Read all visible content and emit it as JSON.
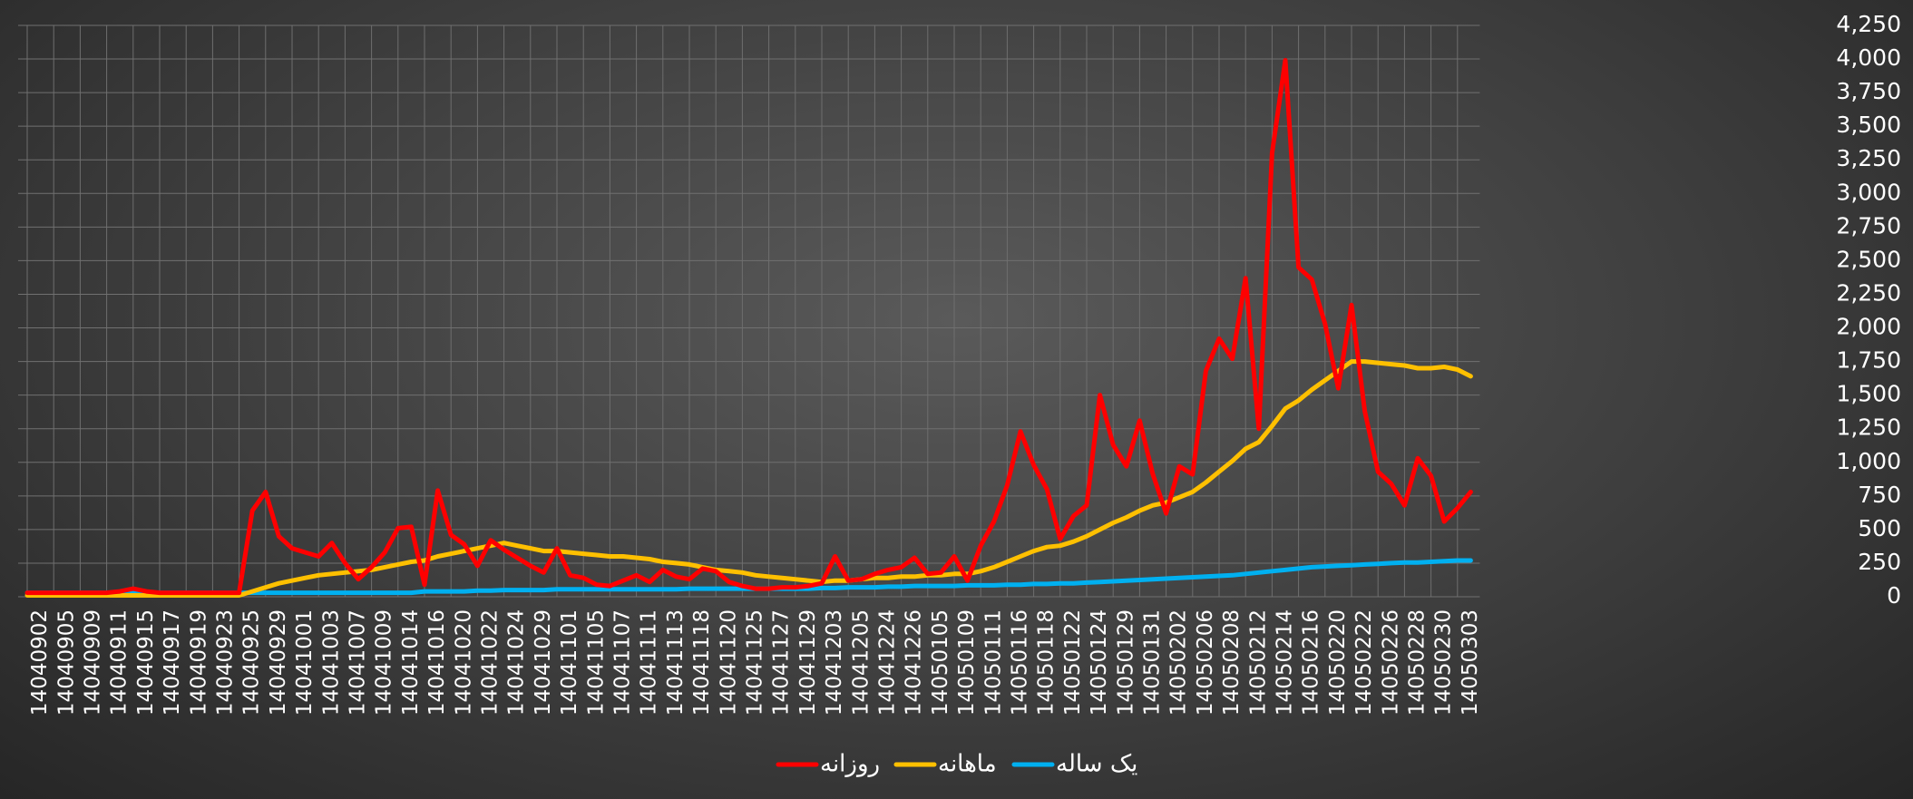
{
  "chart_data": {
    "type": "line",
    "categories": [
      null,
      "14040902",
      null,
      "14040905",
      null,
      "14040909",
      null,
      "14040911",
      null,
      "14040915",
      null,
      "14040917",
      null,
      "14040919",
      null,
      "14040923",
      null,
      "14040925",
      null,
      "14040929",
      null,
      "14041001",
      null,
      "14041003",
      null,
      "14041007",
      null,
      "14041009",
      null,
      "14041014",
      null,
      "14041016",
      null,
      "14041020",
      null,
      "14041022",
      null,
      "14041024",
      null,
      "14041029",
      null,
      "14041101",
      null,
      "14041105",
      null,
      "14041107",
      null,
      "14041111",
      null,
      "14041113",
      null,
      "14041118",
      null,
      "14041120",
      null,
      "14041125",
      null,
      "14041127",
      null,
      "14041129",
      null,
      "14041203",
      null,
      "14041205",
      null,
      "14041224",
      null,
      "14041226",
      null,
      "14050105",
      null,
      "14050109",
      null,
      "14050111",
      null,
      "14050116",
      null,
      "14050118",
      null,
      "14050122",
      null,
      "14050124",
      null,
      "14050129",
      null,
      "14050131",
      null,
      "14050202",
      null,
      "14050206",
      null,
      "14050208",
      null,
      "14050212",
      null,
      "14050214",
      null,
      "14050216",
      null,
      "14050220",
      null,
      "14050222",
      null,
      "14050226",
      null,
      "14050228",
      null,
      "14050230",
      null,
      "14050303"
    ],
    "series": [
      {
        "name": "روزانه",
        "color": "#ff0000",
        "values": [
          30,
          30,
          30,
          30,
          30,
          30,
          30,
          40,
          60,
          40,
          30,
          30,
          30,
          30,
          30,
          30,
          30,
          640,
          780,
          450,
          360,
          330,
          300,
          400,
          250,
          130,
          220,
          330,
          510,
          520,
          90,
          790,
          460,
          390,
          230,
          420,
          350,
          290,
          230,
          180,
          360,
          160,
          140,
          90,
          80,
          120,
          160,
          110,
          200,
          150,
          130,
          210,
          190,
          110,
          80,
          60,
          60,
          70,
          70,
          80,
          100,
          300,
          120,
          130,
          170,
          200,
          220,
          290,
          170,
          180,
          300,
          120,
          380,
          560,
          830,
          1230,
          980,
          800,
          430,
          600,
          680,
          1500,
          1130,
          970,
          1310,
          910,
          620,
          970,
          910,
          1680,
          1920,
          1770,
          2370,
          1250,
          3300,
          3990,
          2450,
          2360,
          2030,
          1550,
          2170,
          1380,
          930,
          840,
          680,
          1030,
          900,
          560,
          660,
          780
        ]
      },
      {
        "name": "ماهانه",
        "color": "#ffc000",
        "values": [
          10,
          10,
          10,
          10,
          10,
          10,
          10,
          10,
          10,
          10,
          10,
          10,
          10,
          10,
          10,
          10,
          10,
          40,
          70,
          100,
          120,
          140,
          160,
          170,
          180,
          190,
          200,
          220,
          240,
          260,
          270,
          300,
          320,
          340,
          360,
          380,
          400,
          380,
          360,
          340,
          340,
          330,
          320,
          310,
          300,
          300,
          290,
          280,
          260,
          250,
          240,
          220,
          200,
          190,
          180,
          160,
          150,
          140,
          130,
          120,
          110,
          120,
          120,
          130,
          140,
          140,
          150,
          150,
          160,
          160,
          170,
          170,
          190,
          220,
          260,
          300,
          340,
          370,
          380,
          410,
          450,
          500,
          550,
          590,
          640,
          680,
          700,
          740,
          780,
          850,
          930,
          1010,
          1100,
          1150,
          1270,
          1400,
          1460,
          1540,
          1610,
          1680,
          1750,
          1750,
          1740,
          1730,
          1720,
          1700,
          1700,
          1710,
          1690,
          1640
        ]
      },
      {
        "name": "یک ساله",
        "color": "#00b0f0",
        "values": [
          30,
          30,
          30,
          30,
          30,
          30,
          30,
          30,
          30,
          30,
          30,
          30,
          30,
          30,
          30,
          30,
          30,
          30,
          30,
          30,
          30,
          30,
          30,
          30,
          30,
          30,
          30,
          30,
          30,
          30,
          40,
          40,
          40,
          40,
          45,
          45,
          50,
          50,
          50,
          50,
          55,
          55,
          55,
          55,
          55,
          55,
          55,
          55,
          55,
          55,
          60,
          60,
          60,
          60,
          60,
          60,
          60,
          60,
          60,
          60,
          65,
          65,
          70,
          70,
          70,
          75,
          75,
          80,
          80,
          80,
          80,
          85,
          85,
          85,
          90,
          90,
          95,
          95,
          100,
          100,
          105,
          110,
          115,
          120,
          125,
          130,
          135,
          140,
          145,
          150,
          155,
          160,
          170,
          180,
          190,
          200,
          210,
          220,
          225,
          230,
          235,
          240,
          245,
          250,
          255,
          255,
          260,
          265,
          270,
          270
        ]
      }
    ],
    "ylim": [
      0,
      4250
    ],
    "yticks": [
      0,
      250,
      500,
      750,
      {
        "value": 1000,
        "label": "1,000"
      },
      {
        "value": 1250,
        "label": "1,250"
      },
      {
        "value": 1500,
        "label": "1,500"
      },
      {
        "value": 1750,
        "label": "1,750"
      },
      {
        "value": 2000,
        "label": "2,000"
      },
      {
        "value": 2250,
        "label": "2,250"
      },
      {
        "value": 2500,
        "label": "2,500"
      },
      {
        "value": 2750,
        "label": "2,750"
      },
      {
        "value": 3000,
        "label": "3,000"
      },
      {
        "value": 3250,
        "label": "3,250"
      },
      {
        "value": 3500,
        "label": "3,500"
      },
      {
        "value": 3750,
        "label": "3,750"
      },
      {
        "value": 4000,
        "label": "4,000"
      },
      {
        "value": 4250,
        "label": "4,250"
      }
    ],
    "grid": true,
    "legend": "bottom"
  }
}
